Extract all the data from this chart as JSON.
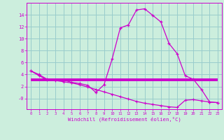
{
  "xlabel": "Windchill (Refroidissement éolien,°C)",
  "bg_color": "#cceedd",
  "line_color": "#cc00cc",
  "grid_color": "#99cccc",
  "x_ticks": [
    0,
    1,
    2,
    3,
    4,
    5,
    6,
    7,
    8,
    9,
    10,
    11,
    12,
    13,
    14,
    15,
    16,
    17,
    18,
    19,
    20,
    21,
    22,
    23
  ],
  "y_ticks": [
    0,
    2,
    4,
    6,
    8,
    10,
    12,
    14
  ],
  "y_tick_labels": [
    "-0",
    "2",
    "4",
    "6",
    "8",
    "10",
    "12",
    "14"
  ],
  "ylim": [
    -1.8,
    16.0
  ],
  "xlim": [
    -0.5,
    23.5
  ],
  "series1_x": [
    0,
    1,
    2,
    3,
    4,
    5,
    6,
    7,
    8,
    9,
    10,
    11,
    12,
    13,
    14,
    15,
    16,
    17,
    18,
    19,
    20,
    21,
    22,
    23
  ],
  "series1_y": [
    4.6,
    4.0,
    3.2,
    3.1,
    3.1,
    2.7,
    2.5,
    2.2,
    1.0,
    2.3,
    6.6,
    11.8,
    12.3,
    14.8,
    15.0,
    13.9,
    12.8,
    9.2,
    7.5,
    3.8,
    3.2,
    1.5,
    -0.6,
    -0.7
  ],
  "series2_x": [
    0,
    23
  ],
  "series2_y": [
    3.1,
    3.1
  ],
  "series3_x": [
    0,
    1,
    2,
    3,
    4,
    5,
    6,
    7,
    8,
    9,
    10,
    11,
    12,
    13,
    14,
    15,
    16,
    17,
    18,
    19,
    20,
    21,
    22,
    23
  ],
  "series3_y": [
    4.6,
    3.8,
    3.1,
    3.0,
    2.8,
    2.6,
    2.3,
    1.9,
    1.5,
    1.1,
    0.7,
    0.3,
    -0.1,
    -0.5,
    -0.8,
    -1.0,
    -1.2,
    -1.4,
    -1.5,
    -0.3,
    -0.2,
    -0.4,
    -0.6,
    -0.7
  ]
}
